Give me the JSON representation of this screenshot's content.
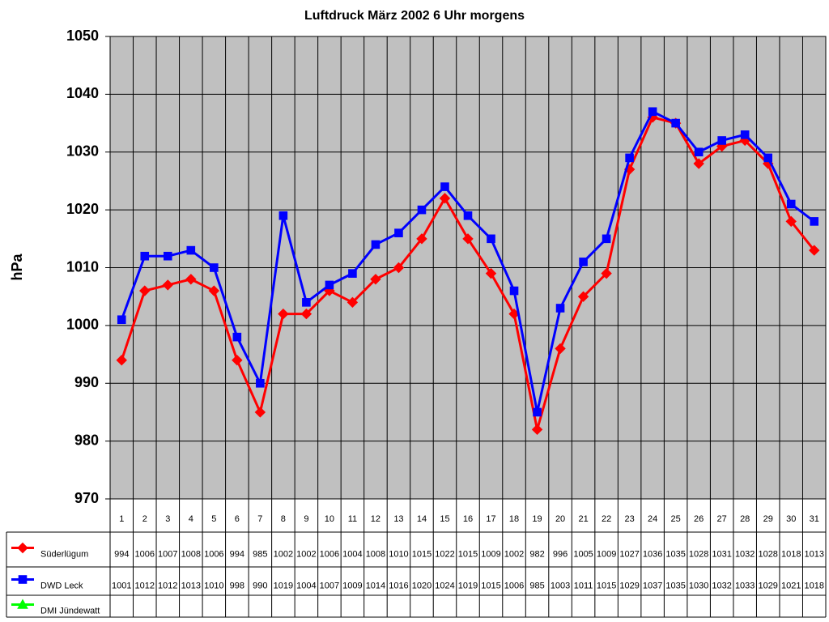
{
  "chart_data": {
    "type": "line",
    "title": "Luftdruck März 2002 6 Uhr morgens",
    "y_label": "hPa",
    "categories": [
      "1",
      "2",
      "3",
      "4",
      "5",
      "6",
      "7",
      "8",
      "9",
      "10",
      "11",
      "12",
      "13",
      "14",
      "15",
      "16",
      "17",
      "18",
      "19",
      "20",
      "21",
      "22",
      "23",
      "24",
      "25",
      "26",
      "27",
      "28",
      "29",
      "30",
      "31"
    ],
    "series": [
      {
        "name": "Süderlügum",
        "color": "#ff0000",
        "marker": "diamond",
        "values": [
          994,
          1006,
          1007,
          1008,
          1006,
          994,
          985,
          1002,
          1002,
          1006,
          1004,
          1008,
          1010,
          1015,
          1022,
          1015,
          1009,
          1002,
          982,
          996,
          1005,
          1009,
          1027,
          1036,
          1035,
          1028,
          1031,
          1032,
          1028,
          1018,
          1013
        ]
      },
      {
        "name": "DWD Leck",
        "color": "#0000ff",
        "marker": "square",
        "values": [
          1001,
          1012,
          1012,
          1013,
          1010,
          998,
          990,
          1019,
          1004,
          1007,
          1009,
          1014,
          1016,
          1020,
          1024,
          1019,
          1015,
          1006,
          985,
          1003,
          1011,
          1015,
          1029,
          1037,
          1035,
          1030,
          1032,
          1033,
          1029,
          1021,
          1018
        ]
      },
      {
        "name": "DMI Jündewatt",
        "color": "#00ff00",
        "marker": "triangle",
        "values": [
          null,
          null,
          null,
          null,
          null,
          null,
          null,
          null,
          null,
          null,
          null,
          null,
          null,
          null,
          null,
          null,
          null,
          null,
          null,
          null,
          null,
          null,
          null,
          null,
          null,
          null,
          null,
          null,
          null,
          null,
          null
        ]
      }
    ],
    "ylim": [
      970,
      1050
    ],
    "yticks": [
      970,
      980,
      990,
      1000,
      1010,
      1020,
      1030,
      1040,
      1050
    ],
    "grid": true,
    "plot_background": "#c0c0c0"
  }
}
